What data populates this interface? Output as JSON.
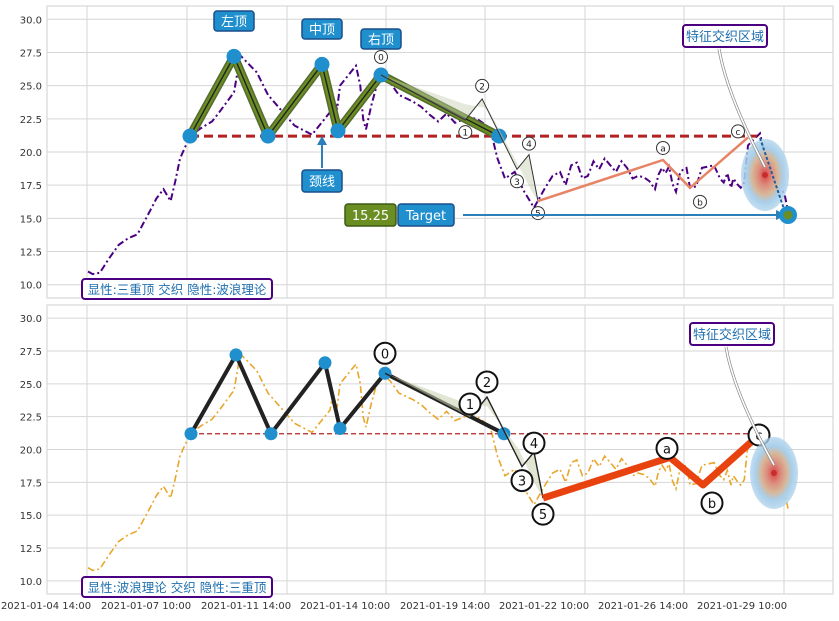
{
  "chart_data": [
    {
      "type": "line",
      "panel": "top",
      "ylim": [
        9.0,
        31.0
      ],
      "yticks": [
        "10.0",
        "12.5",
        "15.0",
        "17.5",
        "20.0",
        "22.5",
        "25.0",
        "27.5",
        "30.0"
      ],
      "grid": true,
      "series": [
        {
          "color": "#4b0082",
          "style": "dash-dot",
          "x": [
            1.0,
            1.2,
            1.5,
            1.9,
            2.3,
            2.7,
            3.1,
            3.4,
            3.7,
            3.9,
            4.2,
            4.5,
            4.7,
            4.9,
            5.0,
            5.15,
            5.3,
            5.4,
            5.6,
            5.8,
            6.0,
            6.3,
            6.5,
            6.8,
            7.0,
            7.3,
            7.5,
            7.8,
            8.0,
            8.3,
            8.6,
            8.8,
            9.0,
            9.3,
            9.6,
            9.9,
            10.2,
            10.5,
            10.8,
            11.0,
            11.3,
            11.6,
            11.9,
            12.2,
            12.5,
            12.8,
            13.0,
            13.3,
            13.5,
            13.7,
            14.0,
            14.3,
            14.6,
            14.9,
            15.1,
            15.3,
            15.6,
            15.9,
            16.2,
            16.5,
            16.8,
            17.1,
            17.4,
            17.7,
            18.0,
            18.3,
            18.6,
            18.9,
            19.2,
            19.5,
            19.8,
            20.1,
            20.4,
            20.7,
            21.0,
            21.3,
            21.6,
            21.9,
            22.2,
            22.5,
            22.8,
            23.1,
            23.4,
            23.7,
            24.0,
            24.3,
            24.6,
            24.9,
            25.2,
            25.5,
            25.8,
            26.0,
            26.3,
            26.6,
            26.9,
            27.2,
            27.5,
            27.8,
            28.1,
            28.4,
            28.7,
            29.0,
            29.3,
            29.5
          ],
          "y": [
            11.0,
            10.8,
            10.9,
            12.0,
            13.0,
            13.5,
            13.8,
            14.8,
            15.8,
            16.5,
            17.2,
            16.3,
            17.8,
            19.5,
            21.2,
            21.8,
            22.3,
            23.0,
            24.5,
            25.8,
            27.3,
            26.0,
            24.3,
            22.0,
            21.3,
            23.0,
            24.2,
            23.2,
            25.0,
            26.5,
            25.0,
            22.5,
            21.7,
            23.5,
            25.0,
            25.8,
            25.2,
            24.3,
            24.0,
            23.8,
            23.4,
            22.8,
            22.3,
            22.9,
            22.2,
            22.6,
            22.5,
            21.8,
            19.5,
            18.0,
            18.5,
            17.0,
            15.8,
            17.3,
            18.2,
            18.5,
            17.5,
            19.0,
            19.2,
            18.0,
            18.2,
            19.3,
            18.7,
            19.5,
            19.0,
            18.5,
            19.3,
            18.8,
            18.0,
            18.2,
            18.1,
            17.8,
            17.2,
            18.3,
            18.8,
            18.4,
            18.9,
            17.6,
            17.0,
            18.3,
            18.7,
            18.8,
            17.3,
            17.4,
            18.8,
            18.9,
            19.0,
            18.0,
            17.7,
            18.4,
            17.3,
            18.0,
            17.6,
            17.3,
            17.7,
            20.5,
            21.4,
            20.0,
            18.8,
            17.8,
            17.4,
            17.3,
            16.6,
            15.5
          ]
        }
      ],
      "pattern": {
        "color": "#6b8e23",
        "points": [
          [
            5.0,
            21.2
          ],
          [
            5.6,
            27.2
          ],
          [
            6.15,
            21.2
          ],
          [
            6.75,
            26.6
          ],
          [
            7.05,
            21.6
          ],
          [
            7.8,
            25.8
          ],
          [
            9.9,
            21.2
          ]
        ],
        "vertex_labels": [
          {
            "x": 5.6,
            "text": "左顶"
          },
          {
            "x": 6.75,
            "text": "中顶"
          },
          {
            "x": 7.8,
            "text": "右顶"
          }
        ]
      },
      "neckline": {
        "y": 21.2,
        "x0": 5.0,
        "x1": 27.4,
        "label": "颈线",
        "color": "#b22222"
      },
      "waves": {
        "labels": [
          "0",
          "1",
          "2",
          "3",
          "4",
          "5",
          "a",
          "b",
          "c"
        ],
        "impulse": [
          [
            7.8,
            25.8
          ],
          [
            9.3,
            22.4
          ],
          [
            9.6,
            24.0
          ],
          [
            10.5,
            18.7
          ],
          [
            10.9,
            19.8
          ],
          [
            11.2,
            16.3
          ]
        ],
        "correction": [
          [
            11.2,
            16.3
          ],
          [
            19.6,
            19.4
          ],
          [
            20.0,
            17.3
          ],
          [
            21.4,
            21.1
          ]
        ]
      },
      "target": {
        "value": "15.25",
        "label": "Target",
        "y": 15.25
      },
      "interaction_zone": "特征交织区域",
      "legend_text": "显性:三重顶 交织 隐性:波浪理论"
    },
    {
      "type": "line",
      "panel": "bottom",
      "ylim": [
        9.0,
        31.0
      ],
      "yticks": [
        "10.0",
        "12.5",
        "15.0",
        "17.5",
        "20.0",
        "22.5",
        "25.0",
        "27.5",
        "30.0"
      ],
      "xticks": [
        "2021-01-04 14:00",
        "2021-01-07 10:00",
        "2021-01-11 14:00",
        "2021-01-14 10:00",
        "2021-01-19 14:00",
        "2021-01-22 10:00",
        "2021-01-26 14:00",
        "2021-01-29 10:00"
      ],
      "grid": true,
      "series": [
        {
          "color": "#e8a62a",
          "style": "dash-dot",
          "x": [
            1.0,
            1.2,
            1.5,
            1.9,
            2.3,
            2.7,
            3.1,
            3.4,
            3.7,
            3.9,
            4.2,
            4.5,
            4.7,
            4.9,
            5.0,
            5.15,
            5.3,
            5.4,
            5.6,
            5.8,
            6.0,
            6.3,
            6.5,
            6.8,
            7.0,
            7.3,
            7.5,
            7.8,
            8.0,
            8.3,
            8.6,
            8.8,
            9.0,
            9.3,
            9.6,
            9.9,
            10.2,
            10.5,
            10.8,
            11.0,
            11.3,
            11.6,
            11.9,
            12.2,
            12.5,
            12.8,
            13.0,
            13.3,
            13.5,
            13.7,
            14.0,
            14.3,
            14.6,
            14.9,
            15.1,
            15.3,
            15.6,
            15.9,
            16.2,
            16.5,
            16.8,
            17.1,
            17.4,
            17.7,
            18.0,
            18.3,
            18.6,
            18.9,
            19.2,
            19.5,
            19.8,
            20.1,
            20.4,
            20.7,
            21.0,
            21.3,
            21.6,
            21.9,
            22.2,
            22.5,
            22.8,
            23.1,
            23.4,
            23.7,
            24.0,
            24.3,
            24.6,
            24.9,
            25.2,
            25.5,
            25.8,
            26.0,
            26.3,
            26.6,
            26.9,
            27.2,
            27.5,
            27.8,
            28.1,
            28.4,
            28.7,
            29.0,
            29.3,
            29.5
          ],
          "y": [
            11.0,
            10.8,
            10.9,
            12.0,
            13.0,
            13.5,
            13.8,
            14.8,
            15.8,
            16.5,
            17.2,
            16.3,
            17.8,
            19.5,
            21.2,
            21.8,
            22.3,
            23.0,
            24.5,
            25.8,
            27.3,
            26.0,
            24.3,
            22.0,
            21.3,
            23.0,
            24.2,
            23.2,
            25.0,
            26.5,
            25.0,
            22.5,
            21.7,
            23.5,
            25.0,
            25.8,
            25.2,
            24.3,
            24.0,
            23.8,
            23.4,
            22.8,
            22.3,
            22.9,
            22.2,
            22.6,
            22.5,
            21.8,
            19.5,
            18.0,
            18.5,
            17.0,
            15.8,
            17.3,
            18.2,
            18.5,
            17.5,
            19.0,
            19.2,
            18.0,
            18.2,
            19.3,
            18.7,
            19.5,
            19.0,
            18.5,
            19.3,
            18.8,
            18.0,
            18.2,
            18.1,
            17.8,
            17.2,
            18.3,
            18.8,
            18.4,
            18.9,
            17.6,
            17.0,
            18.3,
            18.7,
            18.8,
            17.3,
            17.4,
            18.8,
            18.9,
            19.0,
            18.0,
            17.7,
            18.4,
            17.3,
            18.0,
            17.6,
            17.3,
            17.7,
            20.5,
            21.4,
            20.0,
            18.8,
            17.8,
            17.4,
            17.3,
            16.6,
            15.5
          ]
        }
      ],
      "pattern": {
        "color": "#222222",
        "points": [
          [
            5.0,
            21.2
          ],
          [
            5.6,
            27.2
          ],
          [
            6.15,
            21.2
          ],
          [
            6.75,
            26.6
          ],
          [
            7.05,
            21.6
          ],
          [
            7.8,
            25.8
          ],
          [
            9.9,
            21.2
          ]
        ]
      },
      "neckline": {
        "y": 21.2,
        "x0": 5.0,
        "x1": 27.4,
        "color": "#b22222"
      },
      "waves": {
        "labels": [
          "0",
          "1",
          "2",
          "3",
          "4",
          "5",
          "a",
          "b",
          "c"
        ],
        "impulse": [
          [
            7.8,
            25.8
          ],
          [
            9.3,
            22.4
          ],
          [
            9.6,
            24.0
          ],
          [
            10.5,
            18.7
          ],
          [
            10.9,
            19.8
          ],
          [
            11.2,
            16.3
          ]
        ],
        "correction": [
          [
            11.2,
            16.3
          ],
          [
            19.6,
            19.4
          ],
          [
            20.0,
            17.3
          ],
          [
            21.4,
            21.1
          ]
        ]
      },
      "interaction_zone": "特征交织区域",
      "legend_text": "显性:波浪理论 交织 隐性:三重顶"
    }
  ]
}
